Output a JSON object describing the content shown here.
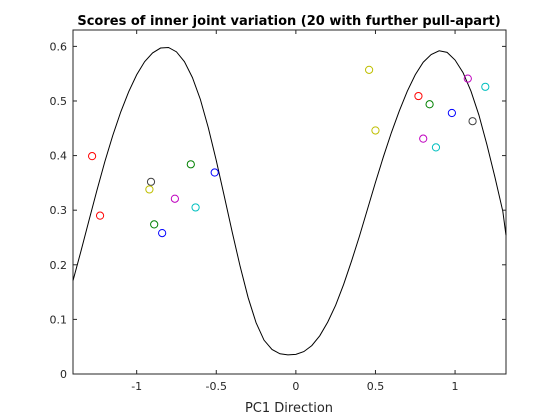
{
  "chart_data": {
    "type": "scatter",
    "title": "Scores of inner joint variation (20 with further pull-apart)",
    "xlabel": "PC1 Direction",
    "ylabel": "",
    "xlim": [
      -1.4,
      1.32
    ],
    "ylim": [
      0,
      0.63
    ],
    "xticks": [
      -1,
      -0.5,
      0,
      0.5,
      1
    ],
    "xtick_labels": [
      "-1",
      "-0.5",
      "0",
      "0.5",
      "1"
    ],
    "yticks": [
      0,
      0.1,
      0.2,
      0.3,
      0.4,
      0.5,
      0.6
    ],
    "ytick_labels": [
      "0",
      "0.1",
      "0.2",
      "0.3",
      "0.4",
      "0.5",
      "0.6"
    ],
    "grid": false,
    "legend": "none",
    "curve": {
      "color": "#000000",
      "points": [
        [
          -1.4,
          0.171
        ],
        [
          -1.35,
          0.225
        ],
        [
          -1.3,
          0.281
        ],
        [
          -1.25,
          0.336
        ],
        [
          -1.2,
          0.389
        ],
        [
          -1.15,
          0.437
        ],
        [
          -1.1,
          0.48
        ],
        [
          -1.05,
          0.517
        ],
        [
          -1.0,
          0.548
        ],
        [
          -0.95,
          0.572
        ],
        [
          -0.9,
          0.588
        ],
        [
          -0.85,
          0.597
        ],
        [
          -0.8,
          0.598
        ],
        [
          -0.75,
          0.59
        ],
        [
          -0.7,
          0.572
        ],
        [
          -0.65,
          0.543
        ],
        [
          -0.6,
          0.503
        ],
        [
          -0.55,
          0.451
        ],
        [
          -0.5,
          0.391
        ],
        [
          -0.45,
          0.326
        ],
        [
          -0.4,
          0.26
        ],
        [
          -0.35,
          0.197
        ],
        [
          -0.3,
          0.14
        ],
        [
          -0.25,
          0.094
        ],
        [
          -0.2,
          0.062
        ],
        [
          -0.15,
          0.045
        ],
        [
          -0.1,
          0.037
        ],
        [
          -0.05,
          0.035
        ],
        [
          0.0,
          0.036
        ],
        [
          0.05,
          0.041
        ],
        [
          0.1,
          0.052
        ],
        [
          0.15,
          0.07
        ],
        [
          0.2,
          0.095
        ],
        [
          0.25,
          0.126
        ],
        [
          0.3,
          0.164
        ],
        [
          0.35,
          0.207
        ],
        [
          0.4,
          0.253
        ],
        [
          0.45,
          0.302
        ],
        [
          0.5,
          0.351
        ],
        [
          0.55,
          0.398
        ],
        [
          0.6,
          0.442
        ],
        [
          0.65,
          0.482
        ],
        [
          0.7,
          0.518
        ],
        [
          0.75,
          0.548
        ],
        [
          0.8,
          0.571
        ],
        [
          0.85,
          0.585
        ],
        [
          0.9,
          0.592
        ],
        [
          0.95,
          0.589
        ],
        [
          1.0,
          0.575
        ],
        [
          1.05,
          0.552
        ],
        [
          1.1,
          0.518
        ],
        [
          1.15,
          0.474
        ],
        [
          1.2,
          0.42
        ],
        [
          1.25,
          0.361
        ],
        [
          1.3,
          0.298
        ],
        [
          1.32,
          0.254
        ]
      ]
    },
    "points": [
      {
        "x": -1.28,
        "y": 0.399,
        "color": "#ff0000"
      },
      {
        "x": -1.23,
        "y": 0.29,
        "color": "#ff0000"
      },
      {
        "x": -0.91,
        "y": 0.352,
        "color": "#404040"
      },
      {
        "x": -0.92,
        "y": 0.338,
        "color": "#bfbf00"
      },
      {
        "x": -0.89,
        "y": 0.274,
        "color": "#008000"
      },
      {
        "x": -0.84,
        "y": 0.258,
        "color": "#0000ff"
      },
      {
        "x": -0.76,
        "y": 0.321,
        "color": "#bf00bf"
      },
      {
        "x": -0.66,
        "y": 0.384,
        "color": "#008000"
      },
      {
        "x": -0.63,
        "y": 0.305,
        "color": "#00bfbf"
      },
      {
        "x": -0.51,
        "y": 0.369,
        "color": "#0000ff"
      },
      {
        "x": 0.46,
        "y": 0.557,
        "color": "#bfbf00"
      },
      {
        "x": 0.5,
        "y": 0.446,
        "color": "#bfbf00"
      },
      {
        "x": 0.77,
        "y": 0.509,
        "color": "#ff0000"
      },
      {
        "x": 0.8,
        "y": 0.431,
        "color": "#bf00bf"
      },
      {
        "x": 0.84,
        "y": 0.494,
        "color": "#008000"
      },
      {
        "x": 0.88,
        "y": 0.415,
        "color": "#00bfbf"
      },
      {
        "x": 0.98,
        "y": 0.478,
        "color": "#0000ff"
      },
      {
        "x": 1.08,
        "y": 0.541,
        "color": "#bf00bf"
      },
      {
        "x": 1.11,
        "y": 0.463,
        "color": "#404040"
      },
      {
        "x": 1.19,
        "y": 0.526,
        "color": "#00bfbf"
      }
    ]
  }
}
